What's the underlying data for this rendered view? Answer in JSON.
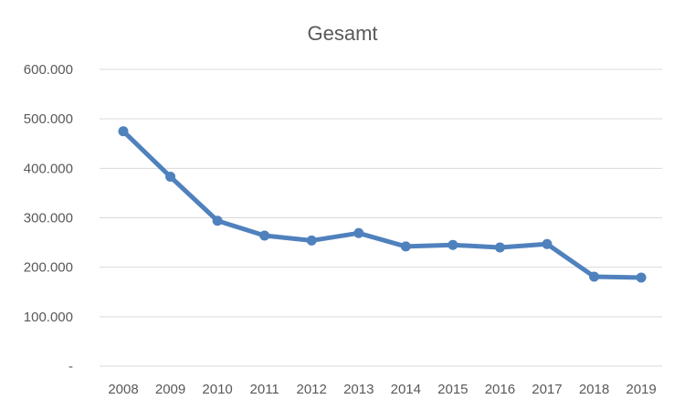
{
  "chart_data": {
    "type": "line",
    "title": "Gesamt",
    "xlabel": "",
    "ylabel": "",
    "categories": [
      "2008",
      "2009",
      "2010",
      "2011",
      "2012",
      "2013",
      "2014",
      "2015",
      "2016",
      "2017",
      "2018",
      "2019"
    ],
    "series": [
      {
        "values": [
          475000,
          383000,
          294000,
          264000,
          254000,
          269000,
          242000,
          245000,
          240000,
          247000,
          181000,
          179000
        ],
        "color": "#4f81bd"
      }
    ],
    "ylim": [
      0,
      600000
    ],
    "y_ticks": [
      {
        "value": 0,
        "label": "-"
      },
      {
        "value": 100000,
        "label": "100.000"
      },
      {
        "value": 200000,
        "label": "200.000"
      },
      {
        "value": 300000,
        "label": "300.000"
      },
      {
        "value": 400000,
        "label": "400.000"
      },
      {
        "value": 500000,
        "label": "500.000"
      },
      {
        "value": 600000,
        "label": "600.000"
      }
    ],
    "grid": true,
    "legend": "none",
    "markers": "circle"
  }
}
